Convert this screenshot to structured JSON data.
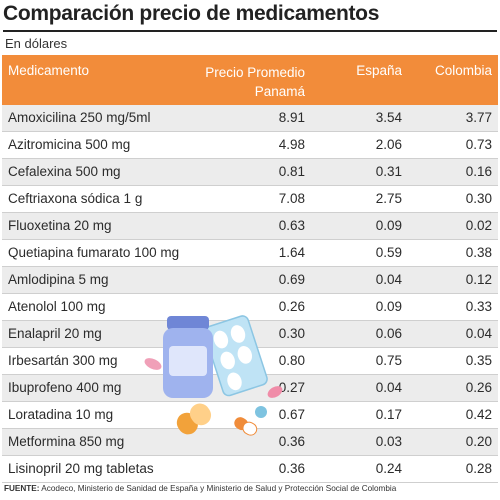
{
  "title": "Comparación precio de medicamentos",
  "subtitle": "En dólares",
  "chart_data": {
    "type": "table",
    "columns": [
      "Medicamento",
      "Precio Promedio Panamá",
      "España",
      "Colombia"
    ],
    "rows": [
      [
        "Amoxicilina 250 mg/5ml",
        "8.91",
        "3.54",
        "3.77"
      ],
      [
        "Azitromicina 500 mg",
        "4.98",
        "2.06",
        "0.73"
      ],
      [
        "Cefalexina 500 mg",
        "0.81",
        "0.31",
        "0.16"
      ],
      [
        "Ceftriaxona sódica 1 g",
        "7.08",
        "2.75",
        "0.30"
      ],
      [
        "Fluoxetina 20 mg",
        "0.63",
        "0.09",
        "0.02"
      ],
      [
        "Quetiapina fumarato 100 mg",
        "1.64",
        "0.59",
        "0.38"
      ],
      [
        "Amlodipina 5 mg",
        "0.69",
        "0.04",
        "0.12"
      ],
      [
        "Atenolol 100 mg",
        "0.26",
        "0.09",
        "0.33"
      ],
      [
        "Enalapril 20 mg",
        "0.30",
        "0.06",
        "0.04"
      ],
      [
        "Irbesartán 300 mg",
        "0.80",
        "0.75",
        "0.35"
      ],
      [
        "Ibuprofeno 400 mg",
        "0.27",
        "0.04",
        "0.26"
      ],
      [
        "Loratadina 10 mg",
        "0.67",
        "0.17",
        "0.42"
      ],
      [
        "Metformina 850 mg",
        "0.36",
        "0.03",
        "0.20"
      ],
      [
        "Lisinopril 20 mg tabletas",
        "0.36",
        "0.24",
        "0.28"
      ]
    ]
  },
  "header": {
    "med": "Medicamento",
    "pan_line1": "Precio Promedio",
    "pan_line2": "Panamá",
    "esp": "España",
    "col": "Colombia"
  },
  "source": {
    "label": "FUENTE:",
    "text": " Acodeco, Ministerio de Sanidad de España y Ministerio de Salud y Protección Social de Colombia"
  },
  "illustration": "pills-and-medicine-bottle-icon",
  "colors": {
    "header": "#f28c3a",
    "stripe": "#ececec"
  }
}
